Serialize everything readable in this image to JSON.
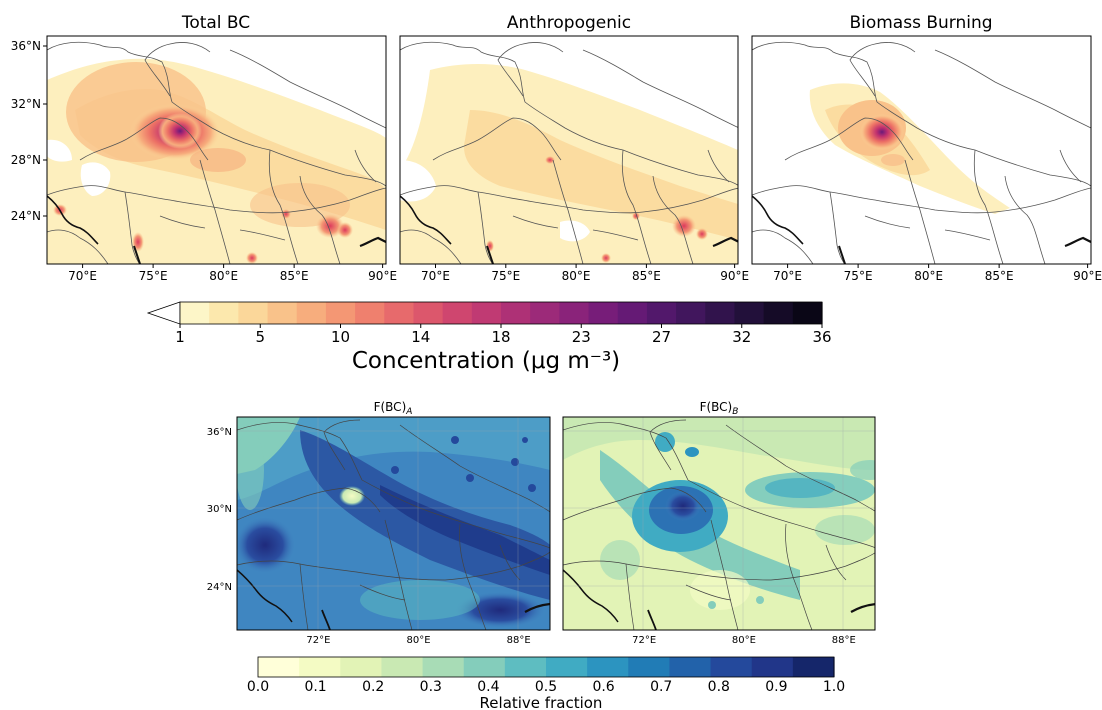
{
  "top_row": {
    "panels": [
      {
        "title": "Total BC",
        "x_ticks": [
          "70°E",
          "75°E",
          "80°E",
          "85°E",
          "90°E"
        ],
        "y_ticks": [
          "36°N",
          "32°N",
          "28°N",
          "24°N"
        ]
      },
      {
        "title": "Anthropogenic",
        "x_ticks": [
          "70°E",
          "75°E",
          "80°E",
          "85°E",
          "90°E"
        ]
      },
      {
        "title": "Biomass Burning",
        "x_ticks": [
          "70°E",
          "75°E",
          "80°E",
          "85°E",
          "90°E"
        ]
      }
    ],
    "colorbar": {
      "ticks": [
        "1",
        "5",
        "10",
        "14",
        "18",
        "23",
        "27",
        "32",
        "36"
      ],
      "label": "Concentration (μg m⁻³)",
      "colors": [
        "#fdf6c8",
        "#fce8ad",
        "#fbd79a",
        "#f9c28a",
        "#f7ad7d",
        "#f49774",
        "#ef806e",
        "#e76a6c",
        "#dc576c",
        "#cf466f",
        "#c03a73",
        "#ae3176",
        "#9c2a79",
        "#8a237a",
        "#771d79",
        "#651a75",
        "#52186b",
        "#41165d",
        "#31134c",
        "#22103a",
        "#150b27",
        "#0a0616"
      ]
    }
  },
  "bottom_row": {
    "panels": [
      {
        "title": "F(BC)",
        "subscript": "A",
        "x_ticks": [
          "72°E",
          "80°E",
          "88°E"
        ],
        "y_ticks": [
          "36°N",
          "30°N",
          "24°N"
        ]
      },
      {
        "title": "F(BC)",
        "subscript": "B",
        "x_ticks": [
          "72°E",
          "80°E",
          "88°E"
        ]
      }
    ],
    "colorbar": {
      "ticks": [
        "0.0",
        "0.1",
        "0.2",
        "0.3",
        "0.4",
        "0.5",
        "0.6",
        "0.7",
        "0.8",
        "0.9",
        "1.0"
      ],
      "label": "Relative fraction",
      "colors": [
        "#ffffd9",
        "#f4fbc4",
        "#e2f3b6",
        "#c9e9b3",
        "#a8dcb6",
        "#84cdbb",
        "#5ebdc1",
        "#40abc3",
        "#2c94c0",
        "#217cb6",
        "#2262aa",
        "#24499c",
        "#213689",
        "#15266a"
      ]
    }
  }
}
